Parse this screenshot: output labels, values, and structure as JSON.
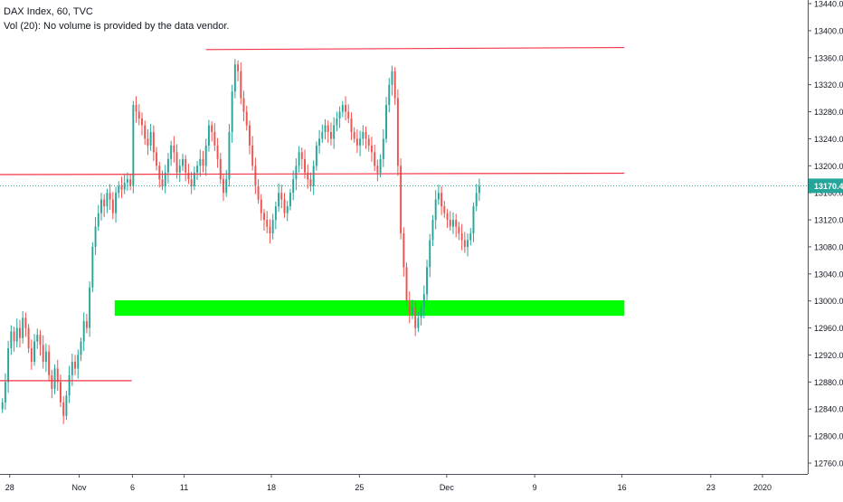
{
  "header": {
    "title": "DAX Index, 60, TVC",
    "volume_note": "Vol (20): No volume is provided by the data vendor."
  },
  "colors": {
    "up": "#26a69a",
    "down": "#ef5350",
    "line": "#f23645",
    "zone": "#00ff00",
    "last_price": "#26a69a",
    "grid": "#ffffff",
    "axis_text": "#131722"
  },
  "chart_data": {
    "type": "candlestick",
    "title": "DAX Index, 60, TVC",
    "xlabel": "",
    "ylabel": "",
    "ylim": [
      12730,
      13450
    ],
    "y_ticks": [
      12760,
      12800,
      12840,
      12880,
      12920,
      12960,
      13000,
      13040,
      13080,
      13120,
      13160,
      13200,
      13240,
      13280,
      13320,
      13360,
      13400,
      13440
    ],
    "y_tick_labels": [
      "12760.0",
      "12800.0",
      "12840.0",
      "12880.0",
      "12920.0",
      "12960.0",
      "13000.0",
      "13040.0",
      "13080.0",
      "13120.0",
      "13160.0",
      "13200.0",
      "13240.0",
      "13280.0",
      "13320.0",
      "13360.0",
      "13400.0",
      "13440.0"
    ],
    "x_range": [
      0,
      100
    ],
    "x_ticks": [
      {
        "label": "28",
        "x": 1.2
      },
      {
        "label": "Nov",
        "x": 9.8
      },
      {
        "label": "6",
        "x": 16.4
      },
      {
        "label": "11",
        "x": 22.8
      },
      {
        "label": "18",
        "x": 33.6
      },
      {
        "label": "25",
        "x": 44.5
      },
      {
        "label": "Dec",
        "x": 55.3
      },
      {
        "label": "9",
        "x": 66.2
      },
      {
        "label": "16",
        "x": 77.0
      },
      {
        "label": "23",
        "x": 88.0
      },
      {
        "label": "2020",
        "x": 94.4
      }
    ],
    "last_price": {
      "value": 13170.4,
      "label": "13170.4"
    },
    "annotations": [
      {
        "kind": "trendline",
        "x1": 25.5,
        "y1": 13372,
        "x2": 77.3,
        "y2": 13375
      },
      {
        "kind": "trendline",
        "x1": 0,
        "y1": 13187,
        "x2": 77.3,
        "y2": 13189
      },
      {
        "kind": "trendline",
        "x1": 0,
        "y1": 12882,
        "x2": 16.3,
        "y2": 12882
      },
      {
        "kind": "zone",
        "x1": 14.2,
        "x2": 77.3,
        "y_top": 13001,
        "y_bottom": 12978
      }
    ],
    "candles": {
      "x_start": 0.3,
      "x_step": 0.36,
      "close": [
        12850,
        12880,
        12930,
        12955,
        12940,
        12960,
        12945,
        12975,
        12960,
        12930,
        12910,
        12940,
        12950,
        12935,
        12910,
        12925,
        12890,
        12870,
        12900,
        12880,
        12850,
        12830,
        12860,
        12890,
        12910,
        12900,
        12920,
        12940,
        12970,
        12960,
        13020,
        13080,
        13110,
        13130,
        13150,
        13140,
        13160,
        13150,
        13130,
        13160,
        13170,
        13165,
        13175,
        13180,
        13170,
        13290,
        13280,
        13270,
        13260,
        13240,
        13230,
        13250,
        13220,
        13200,
        13180,
        13170,
        13190,
        13210,
        13230,
        13220,
        13190,
        13200,
        13210,
        13190,
        13180,
        13170,
        13190,
        13200,
        13210,
        13200,
        13230,
        13260,
        13250,
        13230,
        13210,
        13180,
        13160,
        13180,
        13250,
        13310,
        13350,
        13340,
        13300,
        13280,
        13260,
        13230,
        13200,
        13170,
        13150,
        13130,
        13120,
        13110,
        13100,
        13120,
        13140,
        13160,
        13150,
        13130,
        13140,
        13160,
        13180,
        13200,
        13220,
        13210,
        13190,
        13180,
        13170,
        13200,
        13230,
        13240,
        13250,
        13260,
        13250,
        13240,
        13260,
        13270,
        13280,
        13290,
        13280,
        13270,
        13250,
        13240,
        13230,
        13240,
        13250,
        13240,
        13230,
        13220,
        13200,
        13190,
        13210,
        13240,
        13290,
        13320,
        13340,
        13300,
        13200,
        13100,
        13050,
        13000,
        12980,
        12990,
        12960,
        12975,
        12990,
        13010,
        13050,
        13090,
        13120,
        13150,
        13160,
        13140,
        13130,
        13120,
        13110,
        13120,
        13110,
        13100,
        13090,
        13080,
        13090,
        13100,
        13140,
        13160,
        13170
      ]
    }
  }
}
